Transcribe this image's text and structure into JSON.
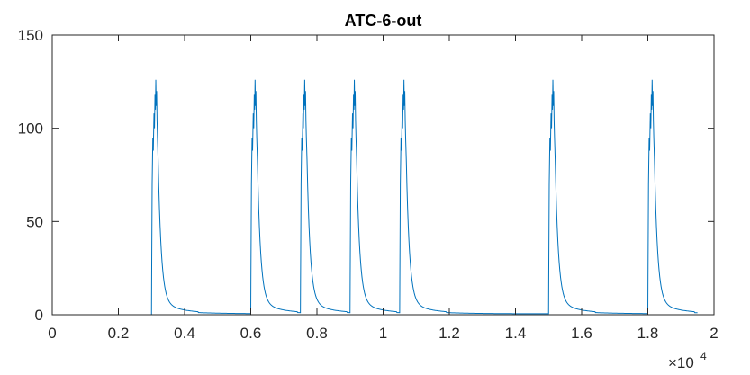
{
  "chart_data": {
    "type": "line",
    "title": "ATC-6-out",
    "xlabel": "",
    "ylabel": "",
    "xlim": [
      0,
      20000
    ],
    "ylim": [
      0,
      150
    ],
    "x_ticks": [
      0,
      2000,
      4000,
      6000,
      8000,
      10000,
      12000,
      14000,
      16000,
      18000,
      20000
    ],
    "x_tick_labels": [
      "0",
      "0.2",
      "0.4",
      "0.6",
      "0.8",
      "1",
      "1.2",
      "1.4",
      "1.6",
      "1.8",
      "2"
    ],
    "x_exponent_label": "×10",
    "x_exponent_power": "4",
    "y_ticks": [
      0,
      50,
      100,
      150
    ],
    "y_tick_labels": [
      "0",
      "50",
      "100",
      "150"
    ],
    "grid": false,
    "x_end": 19500,
    "baseline": 0.5,
    "spike_times": [
      3000,
      6000,
      7500,
      9000,
      10500,
      15000,
      18000
    ],
    "spike_peak": 126,
    "series": [
      {
        "color": "#0072BD"
      }
    ]
  }
}
